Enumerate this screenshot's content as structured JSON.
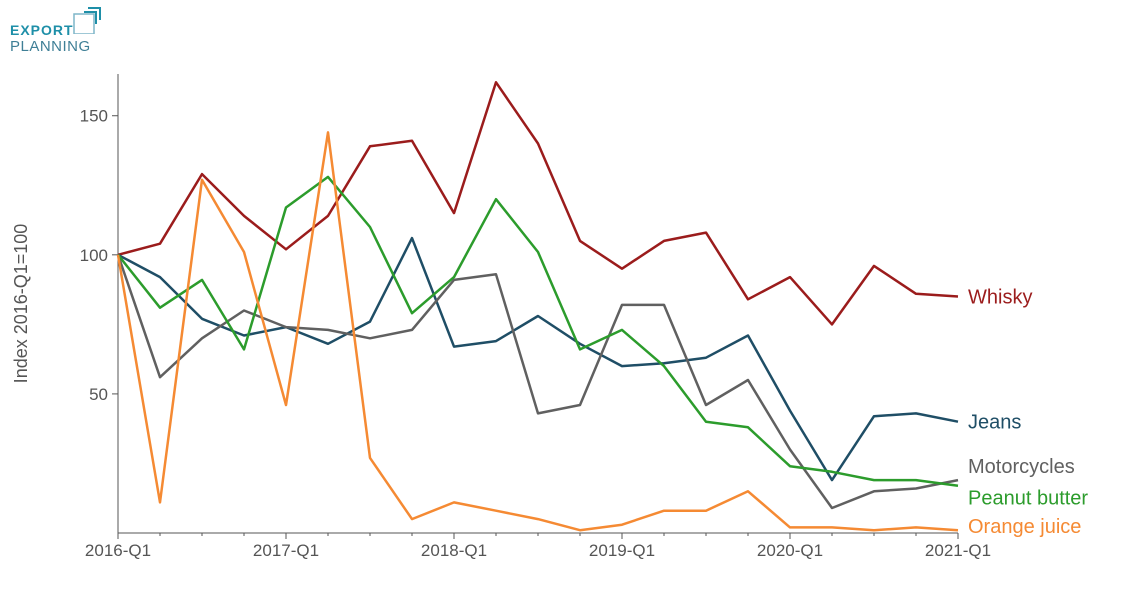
{
  "logo": {
    "line1": "EXPORT",
    "line2": "PLANNING",
    "color": "#1e8fa8"
  },
  "chart_data": {
    "type": "line",
    "title": "",
    "xlabel": "",
    "ylabel": "Index 2016-Q1=100",
    "ylim": [
      0,
      165
    ],
    "yticks": [
      50,
      100,
      150
    ],
    "x": [
      "2016-Q1",
      "2016-Q2",
      "2016-Q3",
      "2016-Q4",
      "2017-Q1",
      "2017-Q2",
      "2017-Q3",
      "2017-Q4",
      "2018-Q1",
      "2018-Q2",
      "2018-Q3",
      "2018-Q4",
      "2019-Q1",
      "2019-Q2",
      "2019-Q3",
      "2019-Q4",
      "2020-Q1",
      "2020-Q2",
      "2020-Q3",
      "2020-Q4",
      "2021-Q1"
    ],
    "xtick_labels": [
      "2016-Q1",
      "2017-Q1",
      "2018-Q1",
      "2019-Q1",
      "2020-Q1",
      "2021-Q1"
    ],
    "grid": false,
    "legend": "labels at line ends (right)",
    "series": [
      {
        "name": "Whisky",
        "color": "#9b1c1c",
        "values": [
          100,
          104,
          129,
          114,
          102,
          114,
          139,
          141,
          115,
          162,
          140,
          105,
          95,
          105,
          108,
          84,
          92,
          75,
          96,
          86,
          85
        ]
      },
      {
        "name": "Jeans",
        "color": "#1f4e66",
        "values": [
          100,
          92,
          77,
          71,
          74,
          68,
          76,
          106,
          67,
          69,
          78,
          68,
          60,
          61,
          63,
          71,
          44,
          19,
          42,
          43,
          40
        ]
      },
      {
        "name": "Motorcycles",
        "color": "#606060",
        "values": [
          100,
          56,
          70,
          80,
          74,
          73,
          70,
          73,
          91,
          93,
          43,
          46,
          82,
          82,
          46,
          55,
          30,
          9,
          15,
          16,
          19
        ]
      },
      {
        "name": "Peanut butter",
        "color": "#2c9c2c",
        "values": [
          100,
          81,
          91,
          66,
          117,
          128,
          110,
          79,
          92,
          120,
          101,
          66,
          73,
          60,
          40,
          38,
          24,
          22,
          19,
          19,
          17
        ]
      },
      {
        "name": "Orange juice",
        "color": "#f58a33",
        "values": [
          100,
          11,
          127,
          101,
          46,
          144,
          27,
          5,
          11,
          8,
          5,
          1,
          3,
          8,
          8,
          15,
          2,
          2,
          1,
          2,
          1
        ]
      }
    ]
  }
}
